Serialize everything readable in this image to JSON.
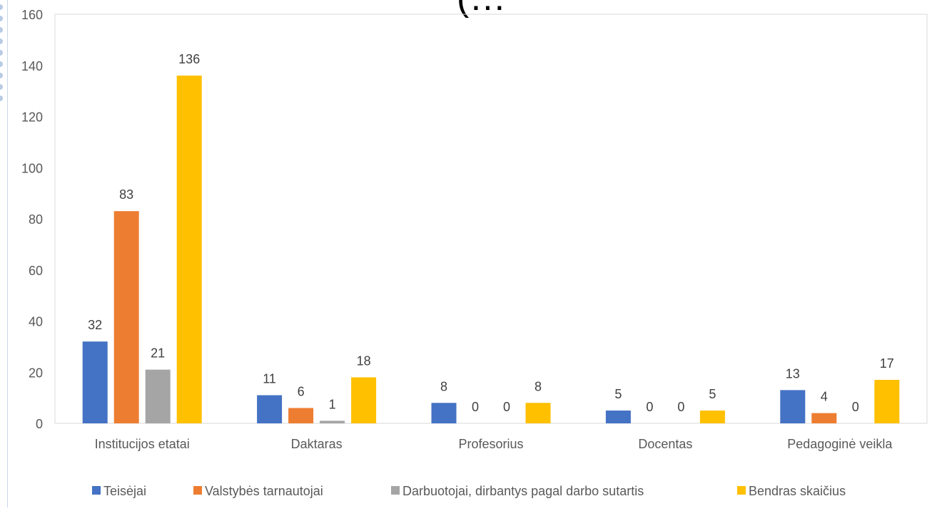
{
  "chart_data": {
    "type": "bar",
    "title": "(…",
    "categories": [
      "Institucijos etatai",
      "Daktaras",
      "Profesorius",
      "Docentas",
      "Pedagoginė veikla"
    ],
    "series": [
      {
        "name": "Teisėjai",
        "color": "#4472C4",
        "values": [
          32,
          11,
          8,
          5,
          13
        ]
      },
      {
        "name": "Valstybės tarnautojai",
        "color": "#ED7D31",
        "values": [
          83,
          6,
          0,
          0,
          4
        ]
      },
      {
        "name": "Darbuotojai, dirbantys pagal darbo sutartis",
        "color": "#A5A5A5",
        "values": [
          21,
          1,
          0,
          0,
          0
        ]
      },
      {
        "name": "Bendras skaičius",
        "color": "#FFC000",
        "values": [
          136,
          18,
          8,
          5,
          17
        ]
      }
    ],
    "ylim": [
      0,
      160
    ],
    "yticks": [
      0,
      20,
      40,
      60,
      80,
      100,
      120,
      140,
      160
    ],
    "grid": false,
    "legend": "bottom"
  }
}
